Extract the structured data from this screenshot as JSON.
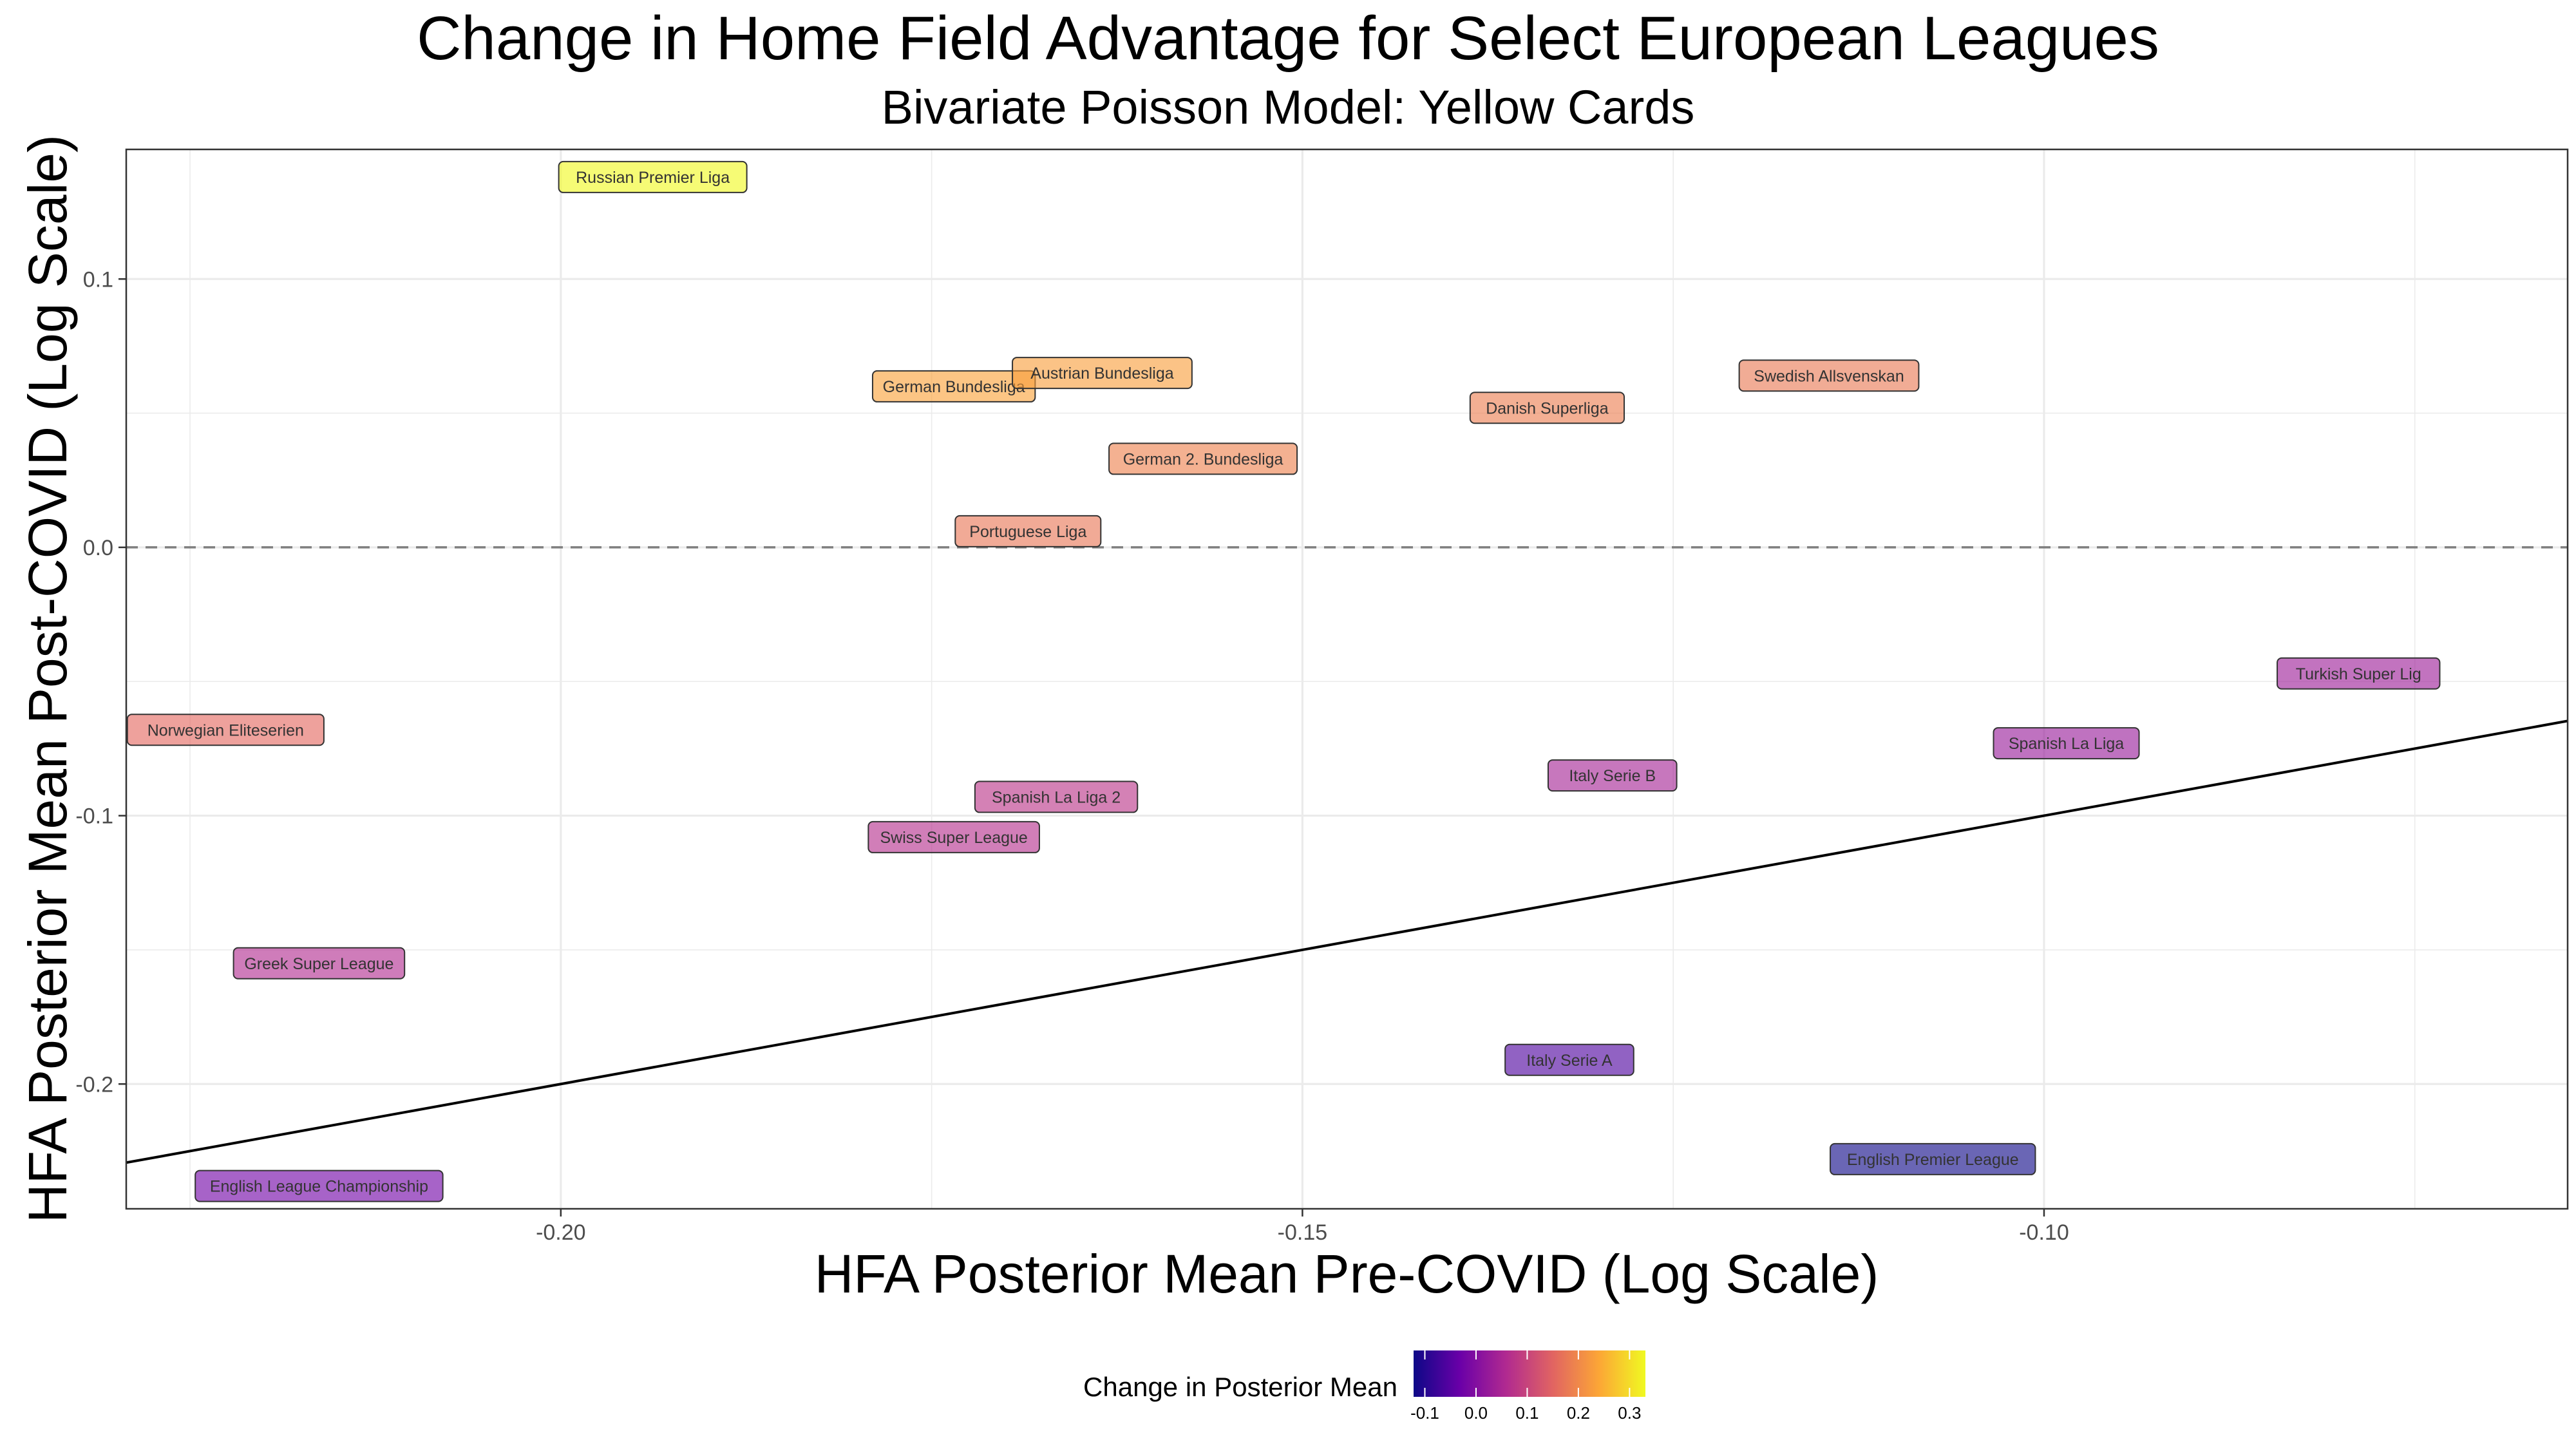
{
  "chart_data": {
    "type": "scatter",
    "title": "Change in Home Field Advantage for Select European Leagues",
    "subtitle": "Bivariate Poisson Model: Yellow Cards",
    "xlabel": "HFA Posterior Mean Pre-COVID (Log Scale)",
    "ylabel": "HFA Posterior Mean Post-COVID (Log Scale)",
    "xlim": [
      -0.2293,
      -0.0647
    ],
    "ylim": [
      -0.2465,
      0.1483
    ],
    "x_ticks": [
      {
        "value": -0.2,
        "label": "-0.20"
      },
      {
        "value": -0.15,
        "label": "-0.15"
      },
      {
        "value": -0.1,
        "label": "-0.10"
      }
    ],
    "y_ticks": [
      {
        "value": 0.1,
        "label": "0.1"
      },
      {
        "value": 0.0,
        "label": "0.0"
      },
      {
        "value": -0.1,
        "label": "-0.1"
      },
      {
        "value": -0.2,
        "label": "-0.2"
      }
    ],
    "grid": true,
    "reference_lines": [
      {
        "kind": "horizontal",
        "y": 0.0,
        "style": "dashed",
        "color": "#7f7f7f"
      },
      {
        "kind": "identity",
        "slope": 1,
        "intercept": 0,
        "style": "solid",
        "color": "#000000"
      }
    ],
    "points": [
      {
        "label": "Russian Premier Liga",
        "x": -0.1938,
        "y": 0.138,
        "change": 0.331
      },
      {
        "label": "German Bundesliga",
        "x": -0.1735,
        "y": 0.06,
        "change": 0.234
      },
      {
        "label": "Austrian Bundesliga",
        "x": -0.1635,
        "y": 0.065,
        "change": 0.229
      },
      {
        "label": "Swedish Allsvenskan",
        "x": -0.1145,
        "y": 0.064,
        "change": 0.178
      },
      {
        "label": "Danish Superliga",
        "x": -0.1335,
        "y": 0.052,
        "change": 0.186
      },
      {
        "label": "German 2. Bundesliga",
        "x": -0.1567,
        "y": 0.033,
        "change": 0.19
      },
      {
        "label": "Portuguese Liga",
        "x": -0.1685,
        "y": 0.006,
        "change": 0.175
      },
      {
        "label": "Turkish Super Lig",
        "x": -0.0788,
        "y": -0.047,
        "change": 0.032
      },
      {
        "label": "Norwegian Eliteserien",
        "x": -0.2226,
        "y": -0.068,
        "change": 0.155
      },
      {
        "label": "Spanish La Liga",
        "x": -0.0985,
        "y": -0.073,
        "change": 0.026
      },
      {
        "label": "Italy Serie B",
        "x": -0.1291,
        "y": -0.085,
        "change": 0.044
      },
      {
        "label": "Spanish La Liga 2",
        "x": -0.1666,
        "y": -0.093,
        "change": 0.074
      },
      {
        "label": "Swiss Super League",
        "x": -0.1735,
        "y": -0.108,
        "change": 0.066
      },
      {
        "label": "Greek Super League",
        "x": -0.2163,
        "y": -0.155,
        "change": 0.061
      },
      {
        "label": "Italy Serie A",
        "x": -0.132,
        "y": -0.191,
        "change": -0.059
      },
      {
        "label": "English Premier League",
        "x": -0.1075,
        "y": -0.228,
        "change": -0.121
      },
      {
        "label": "English League Championship",
        "x": -0.2163,
        "y": -0.238,
        "change": -0.022
      }
    ],
    "legend": {
      "title": "Change in Posterior Mean",
      "placement": "bottom",
      "palette": "plasma",
      "colors": [
        "#0d0887",
        "#6a00a8",
        "#b12a90",
        "#e16462",
        "#fca636",
        "#f0f921"
      ],
      "range": [
        -0.122,
        0.331
      ],
      "ticks": [
        {
          "value": -0.1,
          "label": "-0.1"
        },
        {
          "value": 0.0,
          "label": "0.0"
        },
        {
          "value": 0.1,
          "label": "0.1"
        },
        {
          "value": 0.2,
          "label": "0.2"
        },
        {
          "value": 0.3,
          "label": "0.3"
        }
      ]
    }
  }
}
